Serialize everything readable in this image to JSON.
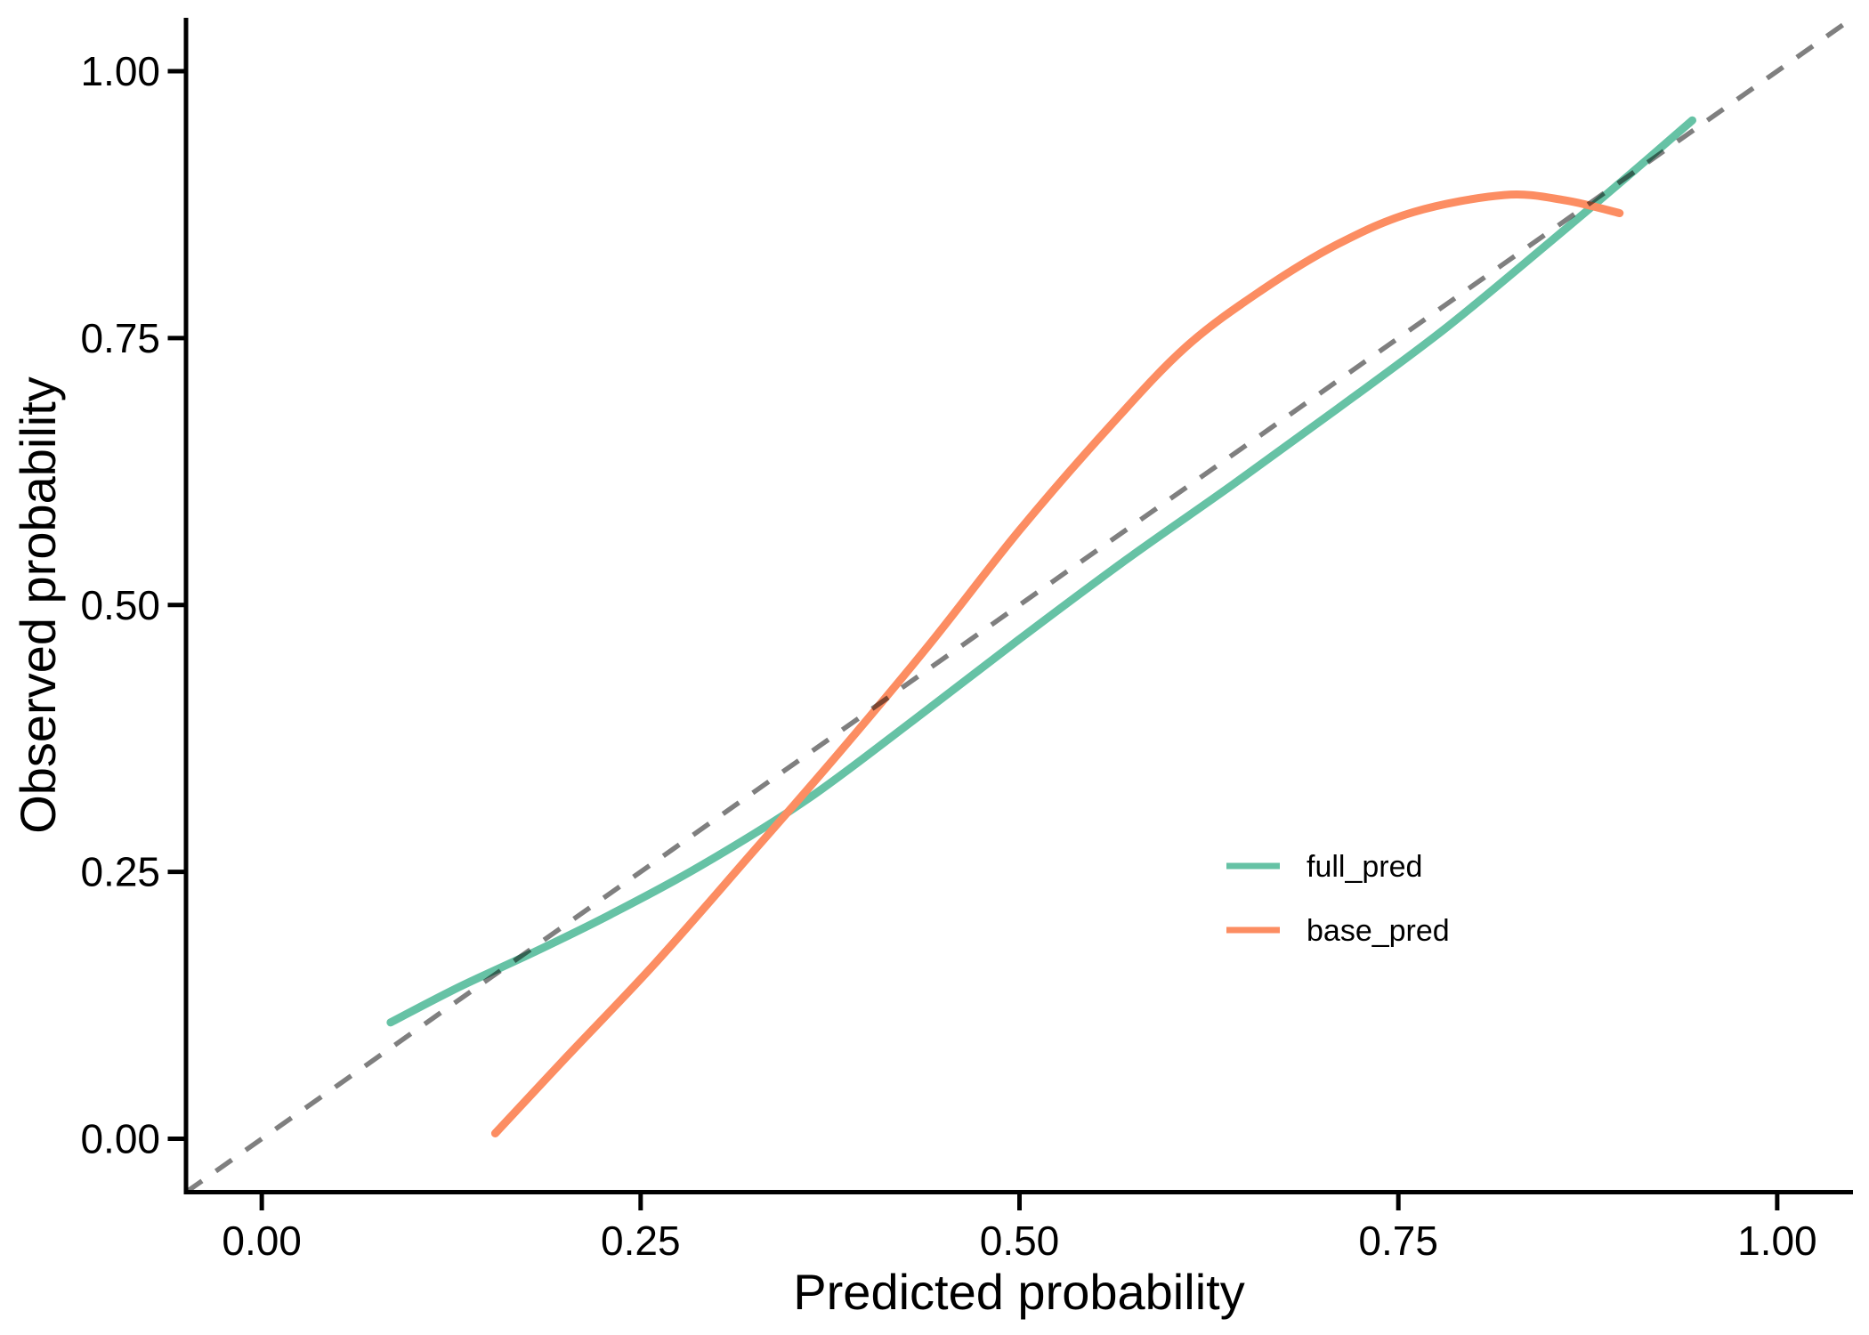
{
  "chart_data": {
    "type": "line",
    "title": "",
    "xlabel": "Predicted probability",
    "ylabel": "Observed probability",
    "xlim": [
      -0.05,
      1.05
    ],
    "ylim": [
      -0.05,
      1.05
    ],
    "grid": false,
    "background_color": "#FFFFFF",
    "axis_color": "#000000",
    "x_ticks": {
      "values": [
        0,
        0.25,
        0.5,
        0.75,
        1.0
      ],
      "labels": [
        "0.00",
        "0.25",
        "0.50",
        "0.75",
        "1.00"
      ]
    },
    "y_ticks": {
      "values": [
        0,
        0.25,
        0.5,
        0.75,
        1.0
      ],
      "labels": [
        "0.00",
        "0.25",
        "0.50",
        "0.75",
        "1.00"
      ]
    },
    "reference_line": {
      "label": "identity",
      "equation": "y = x",
      "style": "dashed",
      "color": "#000000",
      "opacity": 0.5
    },
    "legend": {
      "position": "inside-right",
      "items": [
        "full_pred",
        "base_pred"
      ]
    },
    "series": [
      {
        "name": "full_pred",
        "color": "#66C2A5",
        "points": [
          [
            0.085,
            0.109
          ],
          [
            0.13,
            0.142
          ],
          [
            0.18,
            0.175
          ],
          [
            0.23,
            0.21
          ],
          [
            0.29,
            0.256
          ],
          [
            0.36,
            0.318
          ],
          [
            0.43,
            0.392
          ],
          [
            0.5,
            0.468
          ],
          [
            0.57,
            0.542
          ],
          [
            0.64,
            0.612
          ],
          [
            0.71,
            0.684
          ],
          [
            0.78,
            0.758
          ],
          [
            0.85,
            0.84
          ],
          [
            0.9,
            0.9
          ],
          [
            0.944,
            0.954
          ]
        ]
      },
      {
        "name": "base_pred",
        "color": "#FC8D62",
        "points": [
          [
            0.154,
            0.005
          ],
          [
            0.2,
            0.075
          ],
          [
            0.26,
            0.165
          ],
          [
            0.32,
            0.262
          ],
          [
            0.38,
            0.36
          ],
          [
            0.44,
            0.462
          ],
          [
            0.5,
            0.57
          ],
          [
            0.56,
            0.668
          ],
          [
            0.61,
            0.742
          ],
          [
            0.66,
            0.795
          ],
          [
            0.71,
            0.838
          ],
          [
            0.76,
            0.868
          ],
          [
            0.82,
            0.884
          ],
          [
            0.86,
            0.879
          ],
          [
            0.896,
            0.867
          ]
        ]
      }
    ]
  }
}
